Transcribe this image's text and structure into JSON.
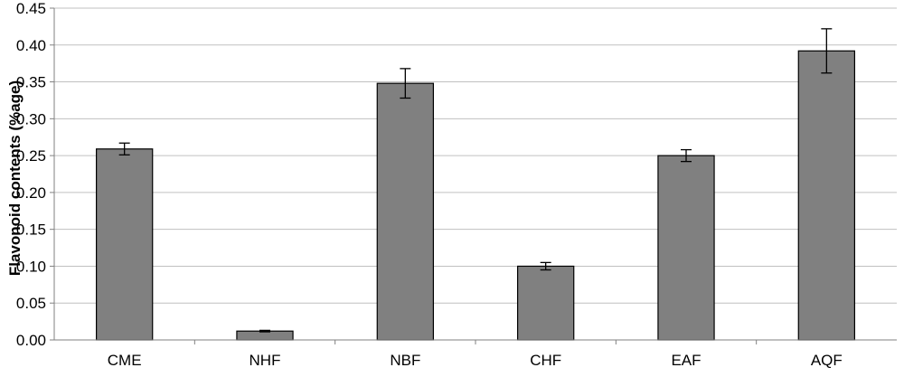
{
  "chart_data": {
    "type": "bar",
    "title": "",
    "xlabel": "",
    "ylabel": "Flavonoid contents (%age)",
    "categories": [
      "CME",
      "NHF",
      "NBF",
      "CHF",
      "EAF",
      "AQF"
    ],
    "values": [
      0.259,
      0.012,
      0.348,
      0.1,
      0.25,
      0.392
    ],
    "error": [
      0.008,
      0.001,
      0.02,
      0.005,
      0.008,
      0.03
    ],
    "ylim": [
      0,
      0.45
    ],
    "yticks": [
      0.0,
      0.05,
      0.1,
      0.15,
      0.2,
      0.25,
      0.3,
      0.35,
      0.4,
      0.45
    ],
    "ytick_labels": [
      "0.00",
      "0.05",
      "0.10",
      "0.15",
      "0.20",
      "0.25",
      "0.30",
      "0.35",
      "0.40",
      "0.45"
    ],
    "grid": true,
    "legend": "none",
    "colors": {
      "bar_fill": "#808080",
      "bar_stroke": "#000000",
      "grid": "#c0c0c0",
      "axis": "#808080",
      "error_bar": "#000000"
    }
  }
}
